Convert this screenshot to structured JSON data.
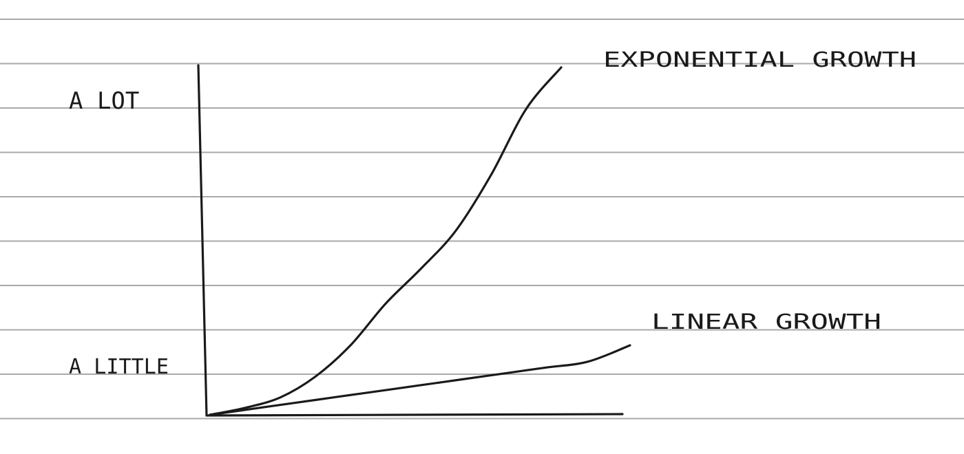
{
  "paper": {
    "background_color": "#ffffff",
    "rule_color": "#a9a9a9",
    "rule_count": 10
  },
  "ink_color": "#1a1a1a",
  "chart_data": {
    "type": "line",
    "title": "",
    "xlabel": "",
    "ylabel": "",
    "y_ticks": [
      "A LOT",
      "A LITTLE"
    ],
    "x": [
      0,
      0.1,
      0.2,
      0.3,
      0.4,
      0.5,
      0.6,
      0.7,
      0.8,
      0.9,
      1.0
    ],
    "series": [
      {
        "name": "EXPONENTIAL GROWTH",
        "values": [
          0,
          0.02,
          0.05,
          0.11,
          0.2,
          0.32,
          0.42,
          0.53,
          0.69,
          0.88,
          1.0
        ]
      },
      {
        "name": "LINEAR GROWTH",
        "values": [
          0,
          0.017,
          0.034,
          0.051,
          0.068,
          0.085,
          0.102,
          0.119,
          0.136,
          0.153,
          0.2
        ]
      }
    ],
    "grid": false,
    "legend": "line-end labels"
  }
}
